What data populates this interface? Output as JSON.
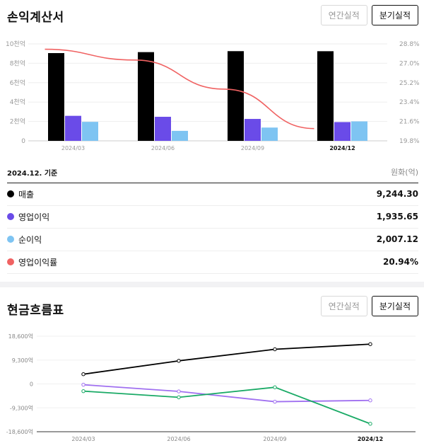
{
  "income": {
    "title": "손익계산서",
    "tabs": {
      "annual": "연간실적",
      "quarterly": "분기실적"
    },
    "as_of": "2024.12. 기준",
    "unit": "원화(억)",
    "legend": [
      {
        "label": "매출",
        "value": "9,244.30",
        "color": "#000000"
      },
      {
        "label": "영업이익",
        "value": "1,935.65",
        "color": "#6a4be8"
      },
      {
        "label": "순이익",
        "value": "2,007.12",
        "color": "#7ec4f2"
      },
      {
        "label": "영업이익률",
        "value": "20.94%",
        "color": "#f06262"
      }
    ]
  },
  "cash": {
    "title": "현금흐름표",
    "tabs": {
      "annual": "연간실적",
      "quarterly": "분기실적"
    }
  },
  "chart_data": [
    {
      "type": "bar",
      "categories": [
        "2024/03",
        "2024/06",
        "2024/09",
        "2024/12"
      ],
      "highlight_category": "2024/12",
      "series": [
        {
          "name": "매출",
          "color": "#000000",
          "values": [
            9050,
            9150,
            9250,
            9244.3
          ]
        },
        {
          "name": "영업이익",
          "color": "#6a4be8",
          "values": [
            2580,
            2480,
            2260,
            1935.65
          ]
        },
        {
          "name": "순이익",
          "color": "#7ec4f2",
          "values": [
            1960,
            1030,
            1370,
            2007.12
          ]
        }
      ],
      "line_series": {
        "name": "영업이익률",
        "color": "#f06262",
        "axis": "right",
        "values": [
          28.3,
          27.3,
          24.6,
          20.94
        ]
      },
      "left_ticks": [
        "10천억",
        "8천억",
        "6천억",
        "4천억",
        "2천억",
        "0"
      ],
      "left_tick_values": [
        10000,
        8000,
        6000,
        4000,
        2000,
        0
      ],
      "ylim": [
        0,
        10000
      ],
      "right_ticks": [
        "28.8%",
        "27.0%",
        "25.2%",
        "23.4%",
        "21.6%",
        "19.8%"
      ],
      "right_tick_values": [
        28.8,
        27.0,
        25.2,
        23.4,
        21.6,
        19.8
      ],
      "y2lim": [
        19.8,
        28.8
      ]
    },
    {
      "type": "line",
      "categories": [
        "2024/03",
        "2024/06",
        "2024/09",
        "2024/12"
      ],
      "highlight_category": "2024/12",
      "series": [
        {
          "color": "#000000",
          "values": [
            3800,
            9000,
            13500,
            15500
          ]
        },
        {
          "color": "#a070f0",
          "values": [
            -300,
            -2900,
            -6900,
            -6400
          ]
        },
        {
          "color": "#1aaa66",
          "values": [
            -2800,
            -5200,
            -1300,
            -15500
          ]
        }
      ],
      "y_ticks": [
        "18,600억",
        "9,300억",
        "0",
        "-9,300억",
        "-18,600억"
      ],
      "y_tick_values": [
        18600,
        9300,
        0,
        -9300,
        -18600
      ],
      "ylim": [
        -18600,
        18600
      ]
    }
  ]
}
